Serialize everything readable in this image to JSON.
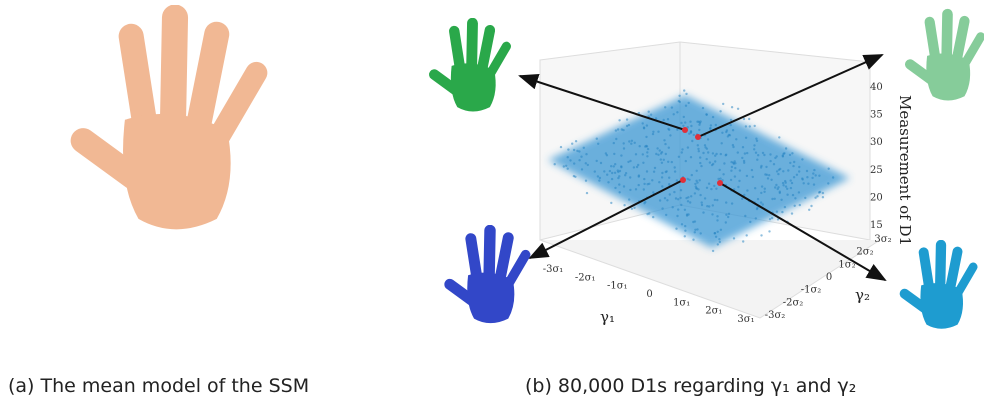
{
  "panels": [
    {
      "caption": "(a) The mean model of the SSM"
    },
    {
      "caption": "(b) 80,000 D1s regarding γ₁ and γ₂",
      "z_label": "Measurement of D1",
      "z_ticks": [
        15,
        20,
        25,
        30,
        35,
        40
      ],
      "x_label": "γ₁",
      "x_ticks": [
        "-3σ₁",
        "-2σ₁",
        "-1σ₁",
        "0",
        "1σ₁",
        "2σ₁",
        "3σ₁"
      ],
      "y_label": "γ₂",
      "y_ticks": [
        "-3σ₂",
        "-2σ₂",
        "-1σ₂",
        "0",
        "1σ₂",
        "2σ₂",
        "3σ₂"
      ]
    }
  ]
}
